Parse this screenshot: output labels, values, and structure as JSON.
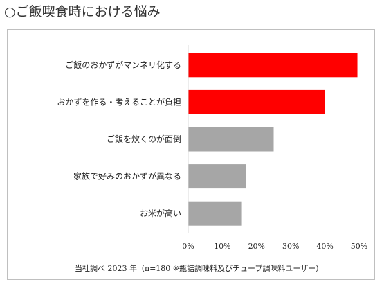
{
  "heading": "○ご飯喫食時における悩み",
  "source_note": "当社調べ 2023 年（n=180 ※瓶詰調味料及びチューブ調味料ユーザー）",
  "colors": {
    "highlight": "#ff0000",
    "normal": "#a6a6a6",
    "axis": "#d9d9d9"
  },
  "chart_data": {
    "type": "bar",
    "orientation": "horizontal",
    "categories": [
      "ご飯のおかずがマンネリ化する",
      "おかずを作る・考えることが負担",
      "ご飯を炊くのが面倒",
      "家族で好みのおかずが異なる",
      "お米が高い"
    ],
    "values": [
      49.5,
      40,
      25,
      17,
      15.5
    ],
    "value_unit": "%",
    "highlighted": [
      true,
      true,
      false,
      false,
      false
    ],
    "xlim": [
      0,
      50
    ],
    "x_ticks": [
      "0%",
      "10%",
      "20%",
      "30%",
      "40%",
      "50%"
    ],
    "grid": false
  }
}
